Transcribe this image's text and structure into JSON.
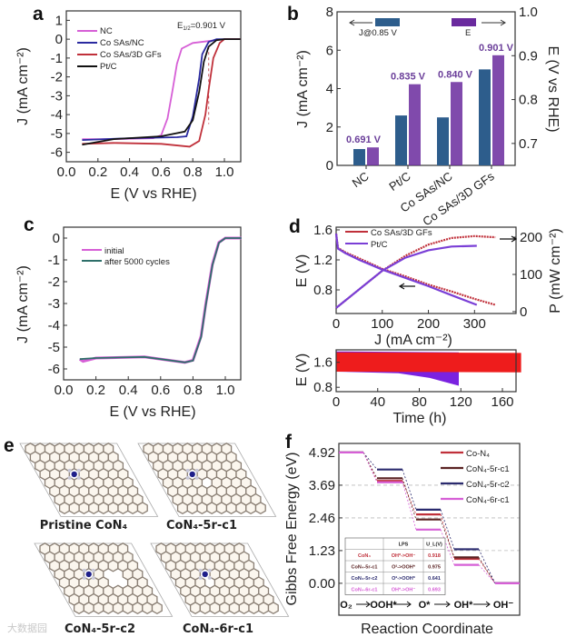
{
  "figure": {
    "panel_labels": [
      "a",
      "b",
      "c",
      "d",
      "e",
      "f"
    ],
    "watermark": "大数据园"
  },
  "chart_data": [
    {
      "panel": "a",
      "type": "line",
      "xlabel": "E (V vs RHE)",
      "ylabel": "J (mA cm⁻²)",
      "xlim": [
        0,
        1.1
      ],
      "ylim": [
        -6.5,
        1.5
      ],
      "xticks": [
        "0.0",
        "0.2",
        "0.4",
        "0.6",
        "0.8",
        "1.0"
      ],
      "yticks": [
        "1",
        "0",
        "-1",
        "-2",
        "-3",
        "-4",
        "-5",
        "-6"
      ],
      "annotation": {
        "symbol": "E",
        "subscript": "1/2",
        "text": "=0.901 V"
      },
      "legend_position": "top-left",
      "series": [
        {
          "name": "NC",
          "color": "#d65fd6",
          "points": [
            [
              0.1,
              -5.3
            ],
            [
              0.3,
              -5.3
            ],
            [
              0.55,
              -5.25
            ],
            [
              0.6,
              -5.1
            ],
            [
              0.64,
              -4.2
            ],
            [
              0.67,
              -2.8
            ],
            [
              0.7,
              -1.3
            ],
            [
              0.73,
              -0.5
            ],
            [
              0.8,
              -0.2
            ],
            [
              0.9,
              -0.1
            ],
            [
              1.0,
              0
            ],
            [
              1.1,
              0
            ]
          ]
        },
        {
          "name": "Co SAs/NC",
          "color": "#2a2aa0",
          "points": [
            [
              0.1,
              -5.35
            ],
            [
              0.4,
              -5.25
            ],
            [
              0.7,
              -5.2
            ],
            [
              0.76,
              -5.15
            ],
            [
              0.8,
              -4.1
            ],
            [
              0.84,
              -2.1
            ],
            [
              0.86,
              -0.8
            ],
            [
              0.9,
              -0.15
            ],
            [
              0.95,
              0
            ],
            [
              1.1,
              0
            ]
          ]
        },
        {
          "name": "Co SAs/3D GFs",
          "color": "#c0303a",
          "points": [
            [
              0.1,
              -5.55
            ],
            [
              0.3,
              -5.5
            ],
            [
              0.6,
              -5.55
            ],
            [
              0.78,
              -5.7
            ],
            [
              0.84,
              -5.4
            ],
            [
              0.88,
              -4.0
            ],
            [
              0.9,
              -2.7
            ],
            [
              0.93,
              -1.0
            ],
            [
              0.97,
              -0.2
            ],
            [
              1.0,
              0
            ],
            [
              1.1,
              0
            ]
          ]
        },
        {
          "name": "Pt/C",
          "color": "#111111",
          "points": [
            [
              0.1,
              -5.6
            ],
            [
              0.3,
              -5.3
            ],
            [
              0.6,
              -5.15
            ],
            [
              0.75,
              -4.9
            ],
            [
              0.8,
              -4.3
            ],
            [
              0.84,
              -2.8
            ],
            [
              0.87,
              -1.2
            ],
            [
              0.9,
              -0.4
            ],
            [
              0.95,
              -0.05
            ],
            [
              1.0,
              0
            ],
            [
              1.1,
              0
            ]
          ]
        }
      ]
    },
    {
      "panel": "b",
      "type": "bar",
      "categories": [
        "NC",
        "Pt/C",
        "Co SAs/NC",
        "Co SAs/3D GFs"
      ],
      "ylabel_left": "J (mA cm⁻²)",
      "ylabel_right": "E (V vs RHE)",
      "ylim_left": [
        0,
        8
      ],
      "ylim_right": [
        0.65,
        1.0
      ],
      "yticks_left": [
        "0",
        "2",
        "4",
        "6",
        "8"
      ],
      "yticks_right": [
        "0.7",
        "0.8",
        "0.9",
        "1.0"
      ],
      "series": [
        {
          "name": "J@0.85 V",
          "axis": "left",
          "color": "#2d5d8c",
          "values": [
            0.85,
            2.6,
            2.5,
            5.0
          ]
        },
        {
          "name": "E",
          "axis": "right",
          "color": "#6a2a9e",
          "values": [
            0.691,
            0.835,
            0.84,
            0.901
          ]
        }
      ],
      "value_labels": [
        "0.691 V",
        "0.835 V",
        "0.840 V",
        "0.901 V"
      ],
      "value_label_color": "#6b3f9a"
    },
    {
      "panel": "c",
      "type": "line",
      "xlabel": "E (V vs RHE)",
      "ylabel": "J (mA cm⁻²)",
      "xlim": [
        0,
        1.1
      ],
      "ylim": [
        -6.5,
        0.5
      ],
      "xticks": [
        "0.0",
        "0.2",
        "0.4",
        "0.6",
        "0.8",
        "1.0"
      ],
      "yticks": [
        "0",
        "-1",
        "-2",
        "-3",
        "-4",
        "-5",
        "-6"
      ],
      "legend_position": "top-left",
      "series": [
        {
          "name": "initial",
          "color": "#d65fd6",
          "points": [
            [
              0.1,
              -5.55
            ],
            [
              0.12,
              -5.65
            ],
            [
              0.2,
              -5.5
            ],
            [
              0.5,
              -5.45
            ],
            [
              0.75,
              -5.7
            ],
            [
              0.8,
              -5.6
            ],
            [
              0.85,
              -4.5
            ],
            [
              0.88,
              -3.0
            ],
            [
              0.92,
              -1.2
            ],
            [
              0.96,
              -0.2
            ],
            [
              1.0,
              0
            ],
            [
              1.1,
              0
            ]
          ]
        },
        {
          "name": "after 5000 cycles",
          "color": "#2e6f6a",
          "points": [
            [
              0.1,
              -5.55
            ],
            [
              0.2,
              -5.5
            ],
            [
              0.5,
              -5.45
            ],
            [
              0.75,
              -5.7
            ],
            [
              0.8,
              -5.62
            ],
            [
              0.85,
              -4.55
            ],
            [
              0.88,
              -3.05
            ],
            [
              0.92,
              -1.25
            ],
            [
              0.96,
              -0.22
            ],
            [
              1.0,
              0
            ],
            [
              1.1,
              0
            ]
          ]
        }
      ]
    },
    {
      "panel": "d-top",
      "type": "line",
      "xlabel": "J (mA cm⁻²)",
      "ylabel": "E (V)",
      "ylabel_right": "P (mW cm⁻²)",
      "xlim": [
        0,
        390
      ],
      "ylim": [
        0.485,
        1.636
      ],
      "ylim_right": [
        -5,
        227
      ],
      "xticks": [
        "0",
        "100",
        "200",
        "300"
      ],
      "yticks": [
        "0.8",
        "1.2",
        "1.6"
      ],
      "yticks_right": [
        "0",
        "100",
        "200"
      ],
      "legend_position": "top-left",
      "series": [
        {
          "name": "Co SAs/3D GFs",
          "color": "#c0303a",
          "polarization": [
            [
              0,
              1.55
            ],
            [
              4,
              1.36
            ],
            [
              20,
              1.3
            ],
            [
              50,
              1.22
            ],
            [
              100,
              1.08
            ],
            [
              150,
              0.98
            ],
            [
              200,
              0.87
            ],
            [
              250,
              0.78
            ],
            [
              300,
              0.68
            ],
            [
              345,
              0.6
            ]
          ],
          "power": [
            [
              0,
              10
            ],
            [
              50,
              60
            ],
            [
              100,
              110
            ],
            [
              150,
              150
            ],
            [
              200,
              180
            ],
            [
              250,
              198
            ],
            [
              300,
              203
            ],
            [
              345,
              200
            ]
          ]
        },
        {
          "name": "Pt/C",
          "color": "#7a3fd6",
          "polarization": [
            [
              0,
              1.55
            ],
            [
              4,
              1.35
            ],
            [
              20,
              1.29
            ],
            [
              50,
              1.2
            ],
            [
              100,
              1.07
            ],
            [
              150,
              0.96
            ],
            [
              200,
              0.85
            ],
            [
              250,
              0.73
            ],
            [
              305,
              0.6
            ]
          ],
          "power": [
            [
              0,
              10
            ],
            [
              50,
              60
            ],
            [
              100,
              110
            ],
            [
              150,
              145
            ],
            [
              200,
              165
            ],
            [
              250,
              175
            ],
            [
              305,
              177
            ]
          ]
        }
      ]
    },
    {
      "panel": "d-bottom",
      "type": "area",
      "xlabel": "Time (h)",
      "ylabel": "E (V)",
      "xlim": [
        0,
        173
      ],
      "ylim": [
        0.66,
        2.0
      ],
      "xticks": [
        "0",
        "40",
        "80",
        "120",
        "160"
      ],
      "yticks": [
        "0.8",
        "1.6"
      ],
      "series": [
        {
          "name": "Pt/C",
          "color": "#7a22e0",
          "upper": [
            [
              0,
              1.95
            ],
            [
              118,
              1.92
            ]
          ],
          "lower": [
            [
              0,
              1.3
            ],
            [
              60,
              1.25
            ],
            [
              90,
              1.1
            ],
            [
              118,
              0.85
            ]
          ]
        },
        {
          "name": "Co SAs/3D GFs",
          "color": "#ee1c1c",
          "upper": [
            [
              0,
              1.92
            ],
            [
              178,
              1.9
            ]
          ],
          "lower": [
            [
              0,
              1.3
            ],
            [
              178,
              1.28
            ]
          ]
        }
      ]
    },
    {
      "panel": "f",
      "type": "step",
      "ylabel": "Gibbs Free Energy (eV)",
      "xlabel": "Reaction Coordinate",
      "ylim": [
        -1.2,
        5.26
      ],
      "yticks": [
        "0.00",
        "1.23",
        "2.46",
        "3.69",
        "4.92"
      ],
      "steps": [
        "O₂",
        "OOH*",
        "O*",
        "OH*",
        "OH⁻"
      ],
      "legend_position": "top-right",
      "series": [
        {
          "name": "Co-N₄",
          "color": "#c0303a",
          "values": [
            4.92,
            3.85,
            2.59,
            0.918,
            0
          ]
        },
        {
          "name": "CoN₄-5r-c1",
          "color": "#5a2323",
          "values": [
            4.92,
            3.95,
            2.4,
            0.975,
            0
          ]
        },
        {
          "name": "CoN₄-5r-c2",
          "color": "#2a2a6e",
          "values": [
            4.92,
            4.28,
            2.77,
            1.28,
            0
          ]
        },
        {
          "name": "CoN₄-6r-c1",
          "color": "#d65fd6",
          "values": [
            4.92,
            3.8,
            2.02,
            0.693,
            0
          ]
        }
      ],
      "table": {
        "headers": [
          "",
          "LPS",
          "U_L(V)"
        ],
        "rows": [
          [
            "CoN₄",
            "OH*->OH⁻",
            "0.918"
          ],
          [
            "CoN₄-5r-c1",
            "O²->OOH*",
            "0.975"
          ],
          [
            "CoN₄-5r-c2",
            "O²->OOH*",
            "0.641"
          ],
          [
            "CoN₄-6r-c1",
            "OH*->OH⁻",
            "0.693"
          ]
        ]
      }
    }
  ],
  "structures": {
    "panel": "e",
    "labels": [
      "Pristine CoN₄",
      "CoN₄-5r-c1",
      "CoN₄-5r-c2",
      "CoN₄-6r-c1"
    ],
    "colors": {
      "carbon": "#8a7f74",
      "nitrogen": "#c8c8d8",
      "cobalt": "#1f1f8a",
      "cell": "#aaaaaa"
    }
  }
}
